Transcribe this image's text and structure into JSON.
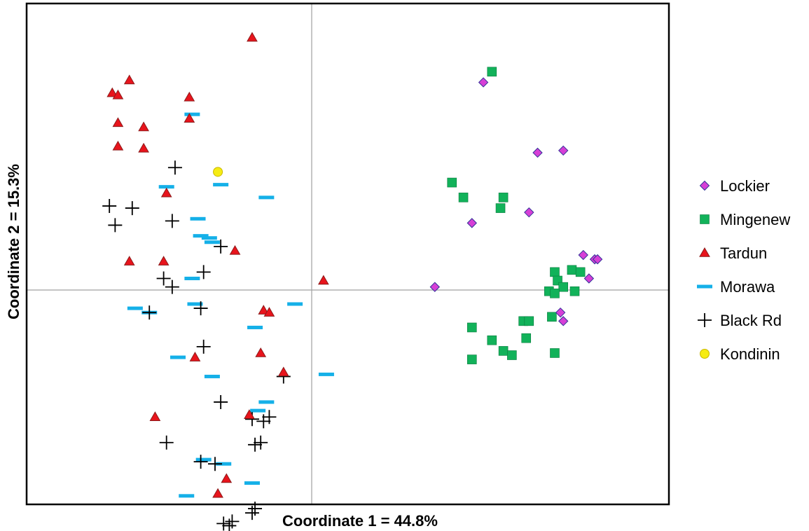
{
  "chart_data": {
    "type": "scatter",
    "title": "",
    "xlabel": "Coordinate 1 = 44.8%",
    "ylabel": "Coordinate 2 = 15.3%",
    "xlim": [
      -1.0,
      1.25
    ],
    "ylim": [
      -1.0,
      1.35
    ],
    "grid": false,
    "reference_lines": {
      "x": 0,
      "y": 0
    },
    "legend_position": "right",
    "series": [
      {
        "name": "Lockier",
        "marker": "diamond",
        "color": "#d63fd6",
        "edge": "#333399",
        "points": [
          [
            0.6,
            0.98
          ],
          [
            0.79,
            0.65
          ],
          [
            0.88,
            0.66
          ],
          [
            0.56,
            0.32
          ],
          [
            0.76,
            0.37
          ],
          [
            0.43,
            0.02
          ],
          [
            0.95,
            0.17
          ],
          [
            0.99,
            0.15
          ],
          [
            0.97,
            0.06
          ],
          [
            1.0,
            0.15
          ],
          [
            0.87,
            -0.1
          ],
          [
            0.88,
            -0.14
          ]
        ]
      },
      {
        "name": "Mingenew",
        "marker": "square",
        "color": "#12b25a",
        "edge": "#0a7a3e",
        "points": [
          [
            0.63,
            1.03
          ],
          [
            0.49,
            0.51
          ],
          [
            0.53,
            0.44
          ],
          [
            0.67,
            0.44
          ],
          [
            0.66,
            0.39
          ],
          [
            0.85,
            0.09
          ],
          [
            0.91,
            0.1
          ],
          [
            0.94,
            0.09
          ],
          [
            0.86,
            0.05
          ],
          [
            0.83,
            0.0
          ],
          [
            0.88,
            0.02
          ],
          [
            0.85,
            -0.01
          ],
          [
            0.92,
            0.0
          ],
          [
            0.56,
            -0.17
          ],
          [
            0.63,
            -0.23
          ],
          [
            0.74,
            -0.14
          ],
          [
            0.76,
            -0.14
          ],
          [
            0.84,
            -0.12
          ],
          [
            0.75,
            -0.22
          ],
          [
            0.67,
            -0.28
          ],
          [
            0.7,
            -0.3
          ],
          [
            0.56,
            -0.32
          ],
          [
            0.85,
            -0.29
          ]
        ]
      },
      {
        "name": "Tardun",
        "marker": "triangle",
        "color": "#e8141c",
        "edge": "#8c1a1a",
        "points": [
          [
            -0.21,
            1.19
          ],
          [
            -0.64,
            0.99
          ],
          [
            -0.7,
            0.93
          ],
          [
            -0.68,
            0.92
          ],
          [
            -0.43,
            0.91
          ],
          [
            -0.43,
            0.81
          ],
          [
            -0.68,
            0.79
          ],
          [
            -0.59,
            0.77
          ],
          [
            -0.68,
            0.68
          ],
          [
            -0.59,
            0.67
          ],
          [
            -0.51,
            0.46
          ],
          [
            -0.27,
            0.19
          ],
          [
            -0.64,
            0.14
          ],
          [
            -0.52,
            0.14
          ],
          [
            -0.17,
            -0.09
          ],
          [
            -0.15,
            -0.1
          ],
          [
            0.04,
            0.05
          ],
          [
            -0.18,
            -0.29
          ],
          [
            -0.41,
            -0.31
          ],
          [
            -0.1,
            -0.38
          ],
          [
            -0.22,
            -0.58
          ],
          [
            -0.55,
            -0.59
          ],
          [
            -0.3,
            -0.88
          ],
          [
            -0.33,
            -0.95
          ]
        ]
      },
      {
        "name": "Morawa",
        "marker": "dash",
        "color": "#15b0e8",
        "edge": "#15b0e8",
        "points": [
          [
            -0.42,
            0.83
          ],
          [
            -0.32,
            0.5
          ],
          [
            -0.16,
            0.44
          ],
          [
            -0.51,
            0.49
          ],
          [
            -0.4,
            0.34
          ],
          [
            -0.39,
            0.26
          ],
          [
            -0.36,
            0.25
          ],
          [
            -0.35,
            0.23
          ],
          [
            -0.42,
            0.06
          ],
          [
            -0.41,
            -0.06
          ],
          [
            -0.62,
            -0.08
          ],
          [
            -0.57,
            -0.1
          ],
          [
            -0.06,
            -0.06
          ],
          [
            -0.2,
            -0.17
          ],
          [
            -0.47,
            -0.31
          ],
          [
            -0.35,
            -0.4
          ],
          [
            0.05,
            -0.39
          ],
          [
            -0.16,
            -0.52
          ],
          [
            -0.19,
            -0.56
          ],
          [
            -0.38,
            -0.79
          ],
          [
            -0.31,
            -0.81
          ],
          [
            -0.21,
            -0.9
          ],
          [
            -0.44,
            -0.96
          ]
        ]
      },
      {
        "name": "Black Rd",
        "marker": "plus",
        "color": "#000000",
        "edge": "#000000",
        "points": [
          [
            -0.48,
            0.58
          ],
          [
            -0.71,
            0.4
          ],
          [
            -0.63,
            0.39
          ],
          [
            -0.69,
            0.31
          ],
          [
            -0.49,
            0.33
          ],
          [
            -0.32,
            0.21
          ],
          [
            -0.38,
            0.09
          ],
          [
            -0.52,
            0.06
          ],
          [
            -0.49,
            0.02
          ],
          [
            -0.57,
            -0.1
          ],
          [
            -0.39,
            -0.08
          ],
          [
            -0.38,
            -0.26
          ],
          [
            -0.1,
            -0.4
          ],
          [
            -0.32,
            -0.52
          ],
          [
            -0.15,
            -0.59
          ],
          [
            -0.21,
            -0.6
          ],
          [
            -0.17,
            -0.61
          ],
          [
            -0.51,
            -0.71
          ],
          [
            -0.18,
            -0.71
          ],
          [
            -0.2,
            -0.72
          ],
          [
            -0.39,
            -0.8
          ],
          [
            -0.34,
            -0.81
          ],
          [
            -0.2,
            -1.02
          ],
          [
            -0.21,
            -1.04
          ],
          [
            -0.28,
            -1.08
          ],
          [
            -0.29,
            -1.1
          ],
          [
            -0.31,
            -1.09
          ]
        ]
      },
      {
        "name": "Kondinin",
        "marker": "circle",
        "color": "#f6ec13",
        "edge": "#c9b800",
        "points": [
          [
            -0.33,
            0.56
          ]
        ]
      }
    ]
  }
}
